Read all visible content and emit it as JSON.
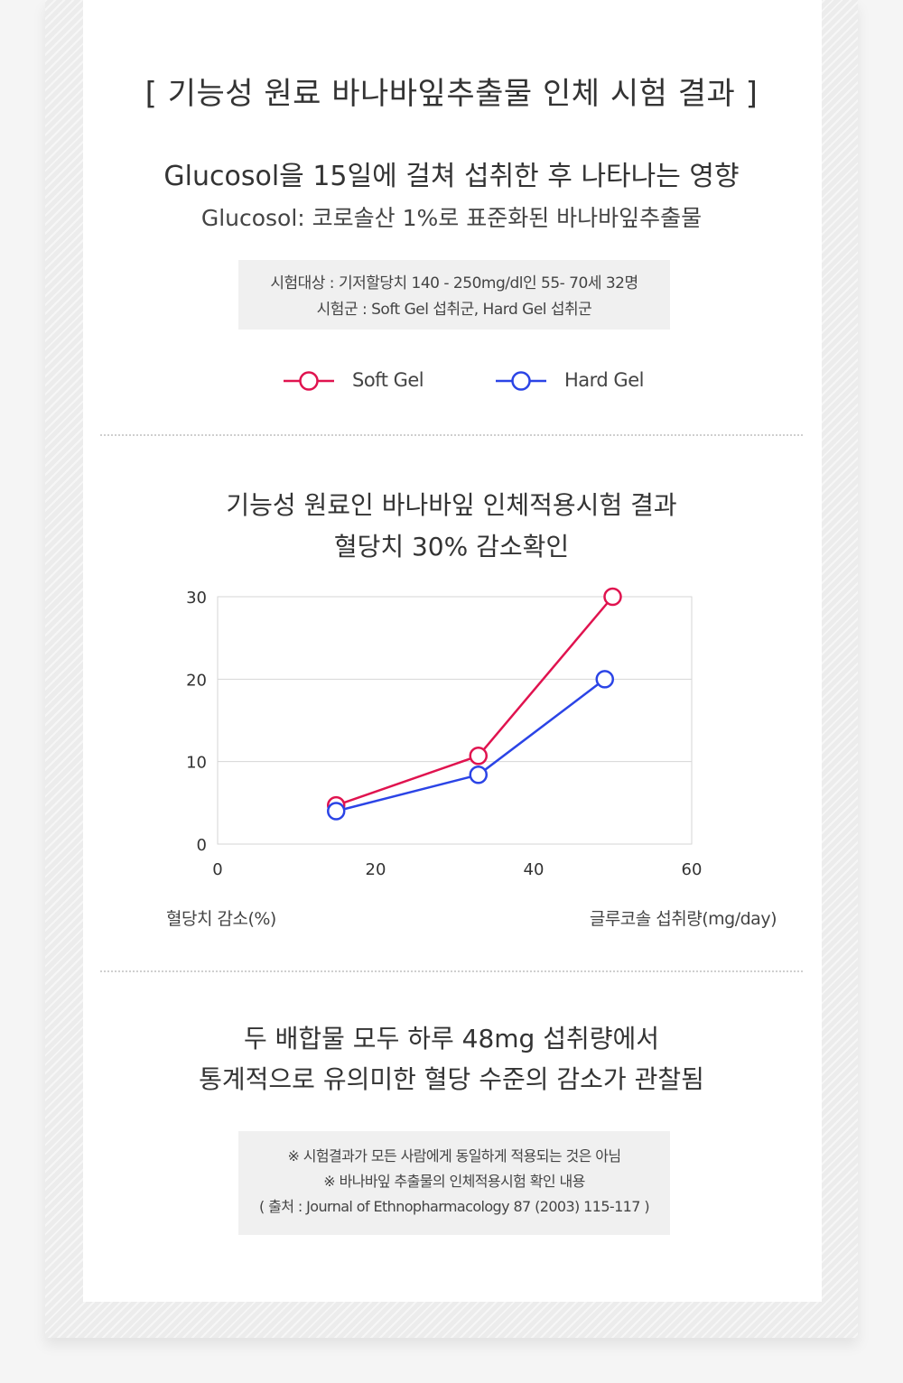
{
  "header": {
    "title": "[  기능성 원료 바나바잎추출물 인체 시험 결과 ]",
    "subtitle": "Glucosol을 15일에 걸쳐 섭취한 후 나타나는 영향",
    "subtitle2": "Glucosol: 코로솔산 1%로 표준화된 바나바잎추출물"
  },
  "study_info": {
    "line1": "시험대상 : 기저할당치 140 - 250mg/dl인 55- 70세 32명",
    "line2": "시험군 : Soft Gel 섭취군, Hard Gel 섭취군"
  },
  "legend": [
    {
      "label": "Soft Gel",
      "color": "#e0134f"
    },
    {
      "label": "Hard Gel",
      "color": "#2b44e6"
    }
  ],
  "chart_heading": {
    "line1": "기능성 원료인 바나바잎 인체적용시험 결과",
    "line2": "혈당치 30% 감소확인"
  },
  "chart_data": {
    "type": "line",
    "xlim": [
      0,
      60
    ],
    "ylim": [
      0,
      30
    ],
    "x_ticks": [
      "0",
      "20",
      "40",
      "60"
    ],
    "y_ticks": [
      "0",
      "10",
      "20",
      "30"
    ],
    "ylabel": "혈당치 감소(%)",
    "xlabel": "글루코솔 섭취량(mg/day)",
    "grid": true,
    "series": [
      {
        "name": "Soft Gel",
        "color": "#e0134f",
        "x": [
          15,
          33,
          50
        ],
        "y": [
          4.7,
          10.7,
          30
        ]
      },
      {
        "name": "Hard Gel",
        "color": "#2b44e6",
        "x": [
          15,
          33,
          49
        ],
        "y": [
          4.0,
          8.4,
          20
        ]
      }
    ]
  },
  "conclusion": {
    "line1": "두 배합물 모두 하루 48mg 섭취량에서",
    "line2": "통계적으로 유의미한 혈당 수준의 감소가 관찰됨"
  },
  "notes": {
    "line1": "※ 시험결과가 모든 사람에게 동일하게 적용되는 것은 아님",
    "line2": "※ 바나바잎 추출물의 인체적용시험 확인 내용",
    "line3": "( 출처 : Journal of Ethnopharmacology 87 (2003) 115-117 )"
  }
}
